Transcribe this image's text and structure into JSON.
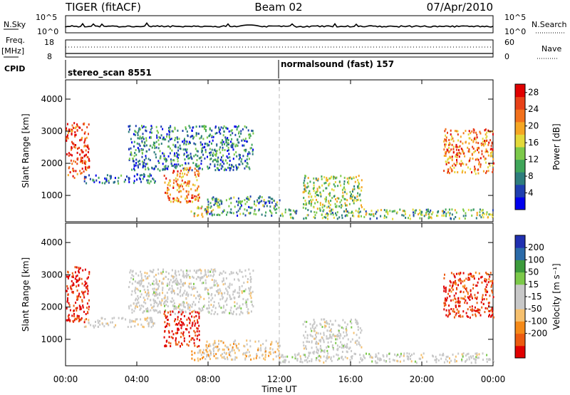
{
  "header": {
    "left": "TIGER (fitACF)",
    "center": "Beam 02",
    "right": "07/Apr/2010"
  },
  "status": {
    "nsky_label": "N.Sky",
    "nsky_ticks": [
      "10^5",
      "10^0"
    ],
    "nsearch_label": "N.Search",
    "freq_label": "Freq.",
    "freq_unit": "[MHz]",
    "freq_ticks": [
      "18",
      "8"
    ],
    "nave_label": "Nave",
    "nave_ticks": [
      "60",
      "0"
    ],
    "cpid_label": "CPID",
    "cpid_left": "stereo_scan 8551",
    "cpid_right": "normalsound (fast) 157"
  },
  "colors": {
    "power_scale": [
      "#0000ee",
      "#1f3fb0",
      "#2e7d7d",
      "#3fa65a",
      "#7cc94a",
      "#e3d93a",
      "#f5a623",
      "#f2711c",
      "#e84118",
      "#e00000"
    ],
    "velocity_scale": [
      "#e00000",
      "#ec5b10",
      "#f58a18",
      "#f6c06e",
      "#c8c8c8",
      "#c8c8c8",
      "#7cc94a",
      "#3c9a3c",
      "#2a6aa8",
      "#2030b0"
    ],
    "ground_scatter": "#b4b4b4"
  },
  "chart_data": [
    {
      "type": "heatmap",
      "title": "",
      "ylabel": "Slant Range [km]",
      "xlabel": "",
      "x_range_hours": [
        0,
        24
      ],
      "ylim": [
        180,
        4600
      ],
      "x_ticks": [
        "00:00",
        "04:00",
        "08:00",
        "12:00",
        "16:00",
        "20:00",
        "00:00"
      ],
      "y_ticks": [
        1000,
        2000,
        3000,
        4000
      ],
      "colorbar": {
        "label": "Power [dB]",
        "ticks": [
          4,
          8,
          12,
          16,
          20,
          24,
          28
        ],
        "range": [
          0,
          30
        ]
      },
      "echo_regions": [
        {
          "x": [
            0.0,
            1.3
          ],
          "y": [
            1550,
            3300
          ],
          "level": 26
        },
        {
          "x": [
            1.0,
            5.0
          ],
          "y": [
            1400,
            1700
          ],
          "level": 6
        },
        {
          "x": [
            3.5,
            10.5
          ],
          "y": [
            1800,
            3200
          ],
          "level": 8
        },
        {
          "x": [
            5.5,
            7.5
          ],
          "y": [
            800,
            1900
          ],
          "level": 22
        },
        {
          "x": [
            7.0,
            8.2
          ],
          "y": [
            350,
            700
          ],
          "level": 18
        },
        {
          "x": [
            7.8,
            12.0
          ],
          "y": [
            400,
            1000
          ],
          "level": 9
        },
        {
          "x": [
            12.0,
            24.0
          ],
          "y": [
            300,
            600
          ],
          "level": 12
        },
        {
          "x": [
            13.3,
            16.6
          ],
          "y": [
            600,
            1650
          ],
          "level": 14
        },
        {
          "x": [
            21.2,
            24.0
          ],
          "y": [
            1700,
            3100
          ],
          "level": 22
        }
      ]
    },
    {
      "type": "heatmap",
      "title": "",
      "ylabel": "Slant Range [km]",
      "xlabel": "Time UT",
      "x_range_hours": [
        0,
        24
      ],
      "ylim": [
        180,
        4600
      ],
      "x_ticks": [
        "00:00",
        "04:00",
        "08:00",
        "12:00",
        "16:00",
        "20:00",
        "00:00"
      ],
      "y_ticks": [
        1000,
        2000,
        3000,
        4000
      ],
      "colorbar": {
        "label": "Velocity [m s⁻¹]",
        "ticks": [
          "200",
          "100",
          "50",
          "15",
          "-15",
          "-50",
          "-100",
          "-200"
        ],
        "range": [
          -250,
          250
        ]
      },
      "echo_regions": [
        {
          "x": [
            0.0,
            1.3
          ],
          "y": [
            1550,
            3300
          ],
          "level": -220
        },
        {
          "x": [
            1.0,
            5.0
          ],
          "y": [
            1400,
            1700
          ],
          "level": -10
        },
        {
          "x": [
            3.5,
            10.5
          ],
          "y": [
            1800,
            3200
          ],
          "level": -5
        },
        {
          "x": [
            5.5,
            7.5
          ],
          "y": [
            800,
            1900
          ],
          "level": -220
        },
        {
          "x": [
            7.0,
            8.2
          ],
          "y": [
            350,
            700
          ],
          "level": -80
        },
        {
          "x": [
            7.8,
            12.0
          ],
          "y": [
            400,
            1000
          ],
          "level": -60
        },
        {
          "x": [
            12.0,
            24.0
          ],
          "y": [
            300,
            600
          ],
          "level": 0
        },
        {
          "x": [
            13.3,
            16.6
          ],
          "y": [
            600,
            1650
          ],
          "level": 0
        },
        {
          "x": [
            21.2,
            24.0
          ],
          "y": [
            1700,
            3100
          ],
          "level": -200
        }
      ]
    }
  ]
}
